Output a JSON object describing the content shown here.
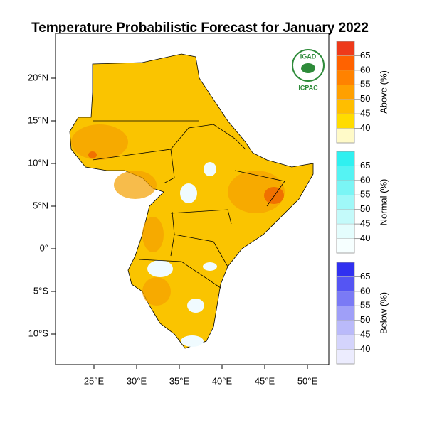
{
  "title": "Temperature Probabilistic Forecast for January 2022",
  "map": {
    "lat_labels": [
      "20°N",
      "15°N",
      "10°N",
      "5°N",
      "0°",
      "5°S",
      "10°S"
    ],
    "lon_labels": [
      "25°E",
      "30°E",
      "35°E",
      "40°E",
      "45°E",
      "50°E"
    ]
  },
  "logo": {
    "top": "IGAD",
    "bottom": "ICPAC"
  },
  "legends": [
    {
      "label": "Above (%)",
      "ticks": [
        65,
        60,
        55,
        50,
        45,
        40
      ]
    },
    {
      "label": "Normal (%)",
      "ticks": [
        65,
        60,
        55,
        50,
        45,
        40
      ]
    },
    {
      "label": "Below (%)",
      "ticks": [
        65,
        60,
        55,
        50,
        45,
        40
      ]
    }
  ]
}
